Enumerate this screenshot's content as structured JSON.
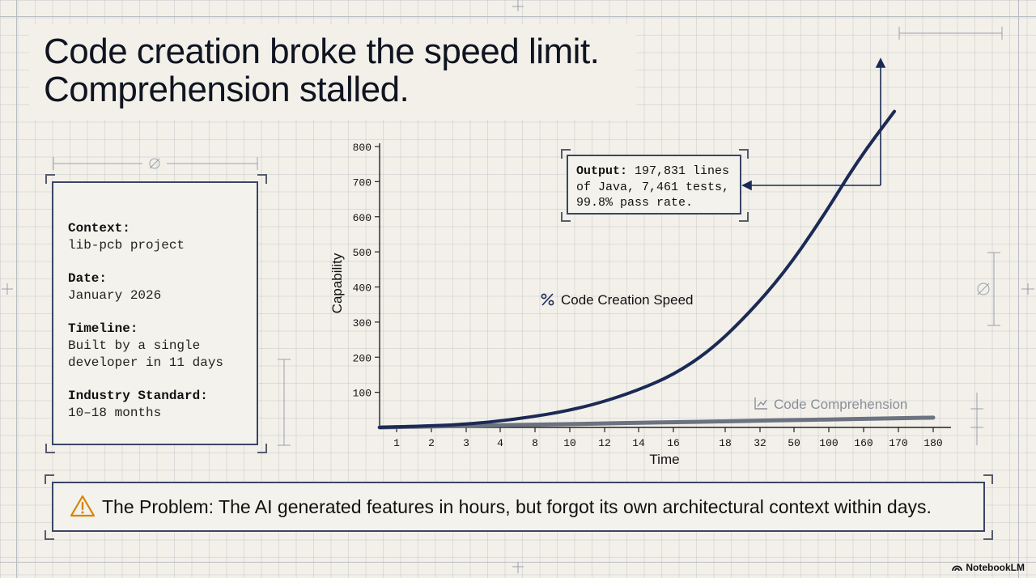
{
  "title": {
    "line1": "Code creation broke the speed limit.",
    "line2": "Comprehension stalled."
  },
  "info_card": {
    "items": [
      {
        "label": "Context:",
        "value": "lib-pcb project"
      },
      {
        "label": "Date:",
        "value": "January 2026"
      },
      {
        "label": "Timeline:",
        "value": "Built by a single developer in 11 days"
      },
      {
        "label": "Industry Standard:",
        "value": "10–18 months"
      }
    ]
  },
  "callout": {
    "bold": "Output:",
    "text": " 197,831 lines of Java, 7,461 tests, 99.8% pass rate."
  },
  "problem": {
    "text": "The Problem: The AI generated features in hours, but forgot its own architectural context within days."
  },
  "logo": {
    "text": "NotebookLM"
  },
  "chart_data": {
    "type": "line",
    "xlabel": "Time",
    "ylabel": "Capability",
    "ylim": [
      0,
      800
    ],
    "y_ticks": [
      100,
      200,
      300,
      400,
      500,
      600,
      700,
      800
    ],
    "x_ticks": [
      "1",
      "2",
      "3",
      "4",
      "8",
      "10",
      "12",
      "14",
      "16",
      "18",
      "32",
      "50",
      "100",
      "160",
      "170",
      "180"
    ],
    "series": [
      {
        "name": "Code Creation Speed",
        "color": "#1b2a55",
        "values": [
          0,
          3,
          7,
          15,
          28,
          45,
          70,
          105,
          150,
          220,
          320,
          440,
          590,
          760,
          900
        ]
      },
      {
        "name": "Code Comprehension",
        "color": "#6b7280",
        "values": [
          0,
          2,
          4,
          6,
          8,
          10,
          12,
          14,
          16,
          18,
          20,
          22,
          24,
          26,
          28
        ]
      }
    ]
  }
}
